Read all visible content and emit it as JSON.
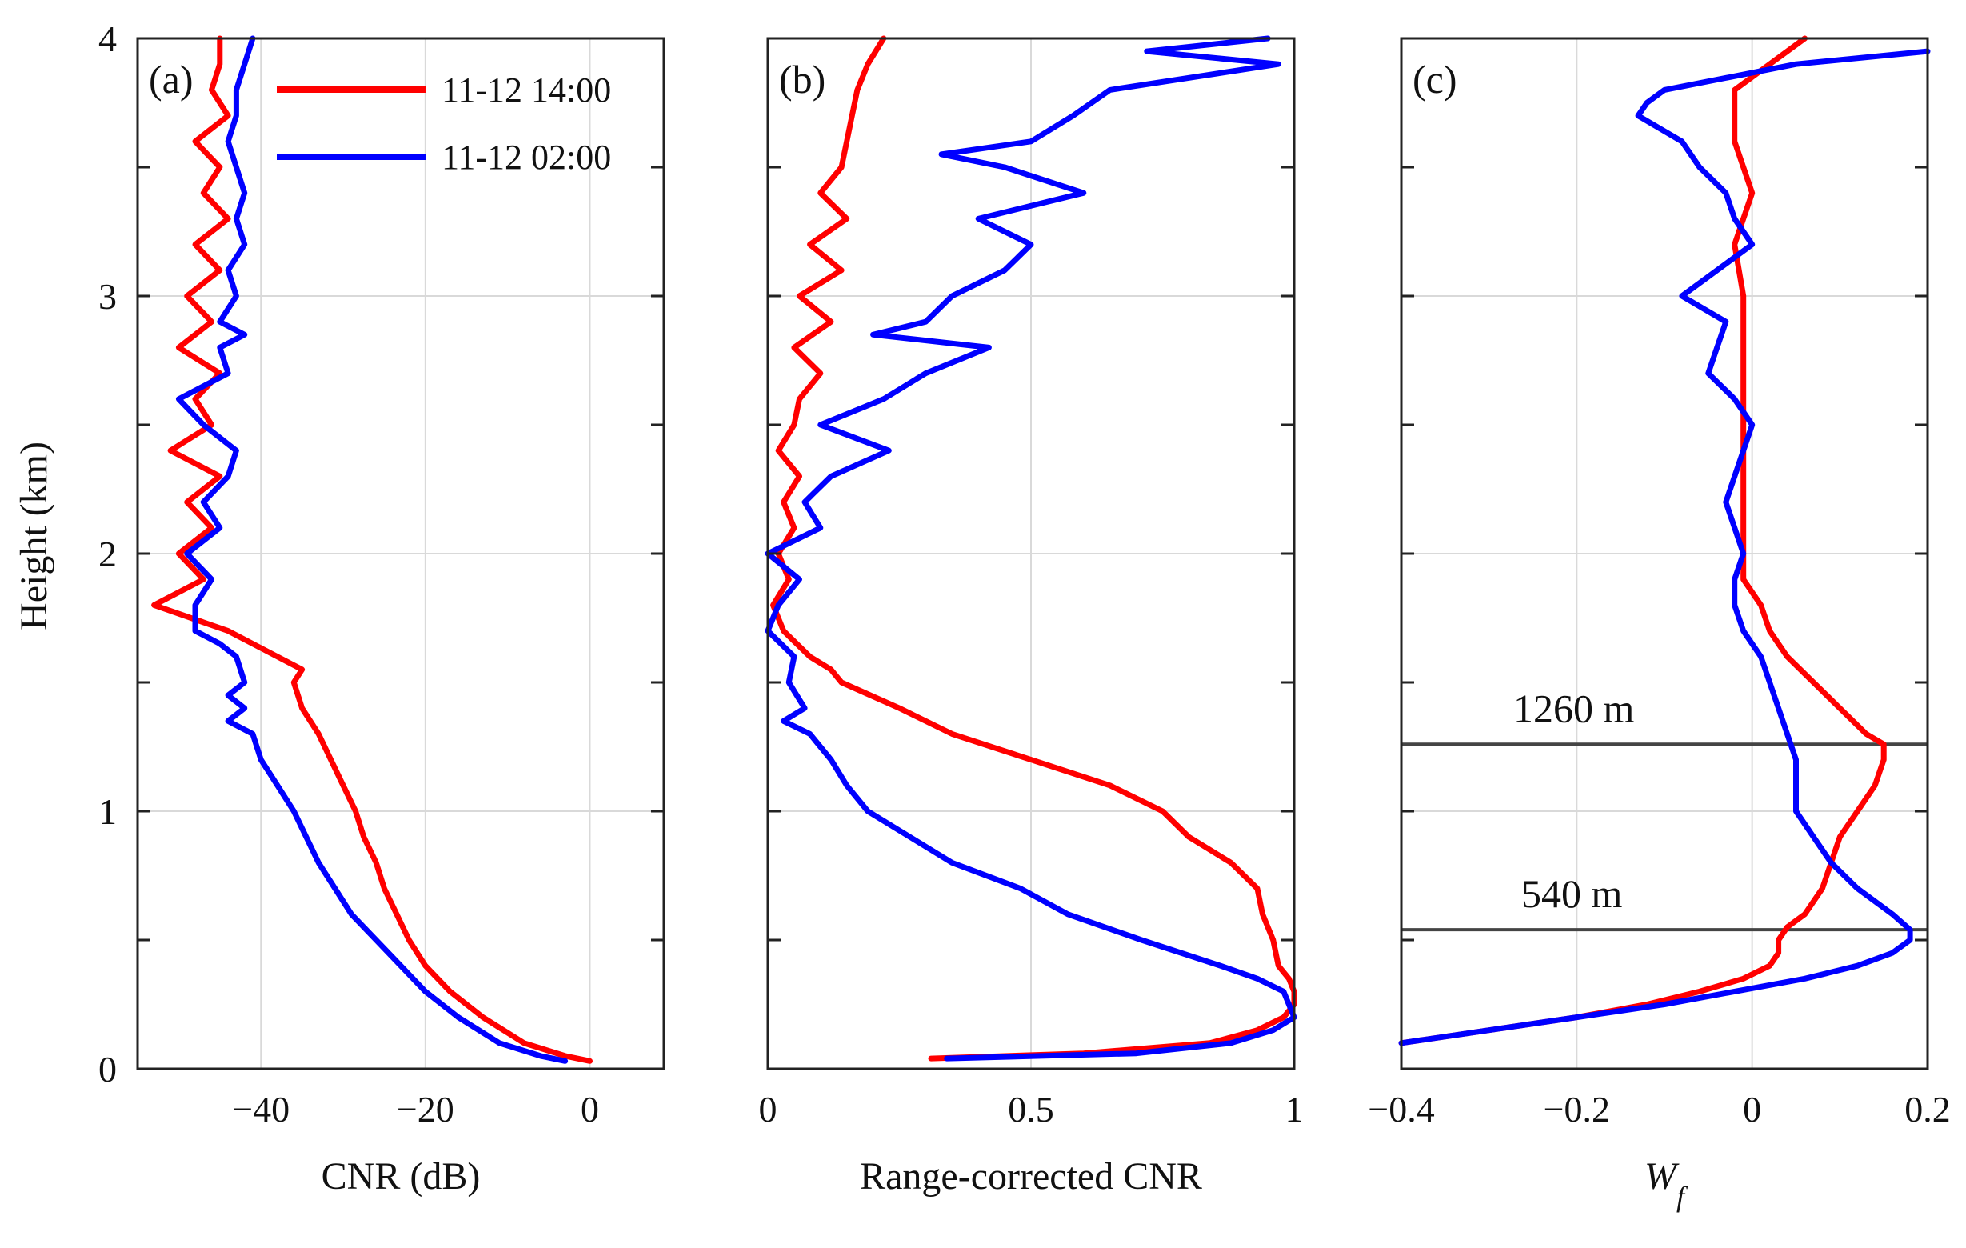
{
  "figure": {
    "ylabel": "Height (km)",
    "legend": [
      {
        "label": "11-12 14:00",
        "color": "#ff0000"
      },
      {
        "label": "11-12 02:00",
        "color": "#0000ff"
      }
    ]
  },
  "chart_data": [
    {
      "type": "line",
      "panel_label": "(a)",
      "xlabel": "CNR (dB)",
      "ylabel": "Height (km)",
      "xlim": [
        -55,
        9
      ],
      "ylim": [
        0,
        4
      ],
      "xticks": [
        -40,
        -20,
        0
      ],
      "xtick_labels": [
        "−40",
        "−20",
        "0"
      ],
      "yticks": [
        0,
        1,
        2,
        3,
        4
      ],
      "ytick_labels": [
        "0",
        "1",
        "2",
        "3",
        "4"
      ],
      "grid": true,
      "series": [
        {
          "name": "11-12 14:00",
          "color": "#ff0000",
          "y": [
            0.03,
            0.05,
            0.1,
            0.2,
            0.3,
            0.4,
            0.5,
            0.6,
            0.7,
            0.8,
            0.9,
            1.0,
            1.1,
            1.2,
            1.3,
            1.4,
            1.5,
            1.55,
            1.6,
            1.65,
            1.7,
            1.8,
            1.9,
            2.0,
            2.1,
            2.2,
            2.3,
            2.4,
            2.5,
            2.6,
            2.7,
            2.8,
            2.9,
            3.0,
            3.1,
            3.2,
            3.3,
            3.4,
            3.5,
            3.6,
            3.7,
            3.8,
            3.9,
            4.0
          ],
          "x": [
            0,
            -3,
            -8,
            -13,
            -17,
            -20,
            -22,
            -23.5,
            -25,
            -26,
            -27.5,
            -28.5,
            -30,
            -31.5,
            -33,
            -35,
            -36,
            -35,
            -38,
            -41,
            -44,
            -53,
            -47,
            -50,
            -46,
            -49,
            -45,
            -51,
            -46,
            -48,
            -45,
            -50,
            -46,
            -49,
            -45,
            -48,
            -44,
            -47,
            -45,
            -48,
            -44,
            -46,
            -45,
            -45
          ]
        },
        {
          "name": "11-12 02:00",
          "color": "#0000ff",
          "y": [
            0.03,
            0.05,
            0.1,
            0.2,
            0.3,
            0.4,
            0.5,
            0.6,
            0.7,
            0.8,
            0.9,
            1.0,
            1.1,
            1.2,
            1.3,
            1.35,
            1.4,
            1.45,
            1.5,
            1.6,
            1.65,
            1.7,
            1.8,
            1.9,
            2.0,
            2.1,
            2.2,
            2.3,
            2.4,
            2.5,
            2.6,
            2.7,
            2.8,
            2.85,
            2.9,
            3.0,
            3.1,
            3.2,
            3.3,
            3.4,
            3.5,
            3.6,
            3.7,
            3.8,
            3.9,
            4.0
          ],
          "x": [
            -3,
            -6,
            -11,
            -16,
            -20,
            -23,
            -26,
            -29,
            -31,
            -33,
            -34.5,
            -36,
            -38,
            -40,
            -41,
            -44,
            -42,
            -44,
            -42,
            -43,
            -45,
            -48,
            -48,
            -46,
            -49,
            -45,
            -47,
            -44,
            -43,
            -47,
            -50,
            -44,
            -45,
            -42,
            -45,
            -43,
            -44,
            -42,
            -43,
            -42,
            -43,
            -44,
            -43,
            -43,
            -42,
            -41
          ]
        }
      ]
    },
    {
      "type": "line",
      "panel_label": "(b)",
      "xlabel": "Range-corrected CNR",
      "xlim": [
        0,
        1
      ],
      "ylim": [
        0,
        4
      ],
      "xticks": [
        0,
        0.5,
        1
      ],
      "xtick_labels": [
        "0",
        "0.5",
        "1"
      ],
      "yticks": [
        0,
        1,
        2,
        3,
        4
      ],
      "grid": true,
      "series": [
        {
          "name": "11-12 14:00",
          "color": "#ff0000",
          "y": [
            0.04,
            0.06,
            0.1,
            0.15,
            0.2,
            0.25,
            0.3,
            0.35,
            0.4,
            0.5,
            0.6,
            0.7,
            0.8,
            0.9,
            1.0,
            1.1,
            1.2,
            1.3,
            1.4,
            1.5,
            1.55,
            1.6,
            1.7,
            1.8,
            1.9,
            2.0,
            2.1,
            2.2,
            2.3,
            2.4,
            2.5,
            2.6,
            2.7,
            2.8,
            2.9,
            3.0,
            3.1,
            3.2,
            3.3,
            3.4,
            3.5,
            3.6,
            3.7,
            3.8,
            3.9,
            4.0
          ],
          "x": [
            0.31,
            0.6,
            0.84,
            0.93,
            0.98,
            1.0,
            1.0,
            0.99,
            0.97,
            0.96,
            0.94,
            0.93,
            0.88,
            0.8,
            0.75,
            0.65,
            0.5,
            0.35,
            0.25,
            0.14,
            0.12,
            0.08,
            0.03,
            0.01,
            0.04,
            0.02,
            0.05,
            0.03,
            0.06,
            0.02,
            0.05,
            0.06,
            0.1,
            0.05,
            0.12,
            0.06,
            0.14,
            0.08,
            0.15,
            0.1,
            0.14,
            0.15,
            0.16,
            0.17,
            0.19,
            0.22
          ]
        },
        {
          "name": "11-12 02:00",
          "color": "#0000ff",
          "y": [
            0.04,
            0.06,
            0.1,
            0.15,
            0.2,
            0.25,
            0.3,
            0.35,
            0.4,
            0.5,
            0.6,
            0.7,
            0.8,
            0.9,
            1.0,
            1.1,
            1.2,
            1.3,
            1.35,
            1.4,
            1.5,
            1.6,
            1.7,
            1.8,
            1.9,
            2.0,
            2.1,
            2.2,
            2.3,
            2.4,
            2.5,
            2.6,
            2.7,
            2.8,
            2.85,
            2.9,
            3.0,
            3.1,
            3.2,
            3.3,
            3.4,
            3.5,
            3.55,
            3.6,
            3.7,
            3.8,
            3.9,
            3.95,
            4.0
          ],
          "x": [
            0.34,
            0.7,
            0.88,
            0.96,
            1.0,
            0.99,
            0.98,
            0.93,
            0.86,
            0.71,
            0.57,
            0.48,
            0.35,
            0.27,
            0.19,
            0.15,
            0.12,
            0.08,
            0.03,
            0.07,
            0.04,
            0.05,
            0.0,
            0.02,
            0.06,
            0.0,
            0.1,
            0.07,
            0.12,
            0.23,
            0.1,
            0.22,
            0.3,
            0.42,
            0.2,
            0.3,
            0.35,
            0.45,
            0.5,
            0.4,
            0.6,
            0.45,
            0.33,
            0.5,
            0.58,
            0.65,
            0.97,
            0.72,
            0.95
          ]
        }
      ]
    },
    {
      "type": "line",
      "panel_label": "(c)",
      "xlabel": "W",
      "xlabel_sub": "f",
      "xlim": [
        -0.4,
        0.2
      ],
      "ylim": [
        0,
        4
      ],
      "xticks": [
        -0.4,
        -0.2,
        0,
        0.2
      ],
      "xtick_labels": [
        "−0.4",
        "−0.2",
        "0",
        "0.2"
      ],
      "yticks": [
        0,
        1,
        2,
        3,
        4
      ],
      "grid": true,
      "hlines": [
        {
          "y": 1.26,
          "label": "1260 m"
        },
        {
          "y": 0.54,
          "label": "540 m"
        }
      ],
      "series": [
        {
          "name": "11-12 14:00",
          "color": "#ff0000",
          "y": [
            0.1,
            0.15,
            0.2,
            0.25,
            0.3,
            0.35,
            0.4,
            0.45,
            0.5,
            0.55,
            0.6,
            0.7,
            0.8,
            0.9,
            1.0,
            1.1,
            1.2,
            1.26,
            1.3,
            1.4,
            1.5,
            1.6,
            1.7,
            1.8,
            1.9,
            2.0,
            2.2,
            2.4,
            2.6,
            2.8,
            3.0,
            3.2,
            3.4,
            3.6,
            3.8,
            3.9,
            4.0
          ],
          "x": [
            -0.4,
            -0.3,
            -0.2,
            -0.12,
            -0.06,
            -0.01,
            0.02,
            0.03,
            0.03,
            0.04,
            0.06,
            0.08,
            0.09,
            0.1,
            0.12,
            0.14,
            0.15,
            0.15,
            0.13,
            0.1,
            0.07,
            0.04,
            0.02,
            0.01,
            -0.01,
            -0.01,
            -0.01,
            -0.01,
            -0.01,
            -0.01,
            -0.01,
            -0.02,
            0.0,
            -0.02,
            -0.02,
            0.02,
            0.06
          ]
        },
        {
          "name": "11-12 02:00",
          "color": "#0000ff",
          "y": [
            0.1,
            0.15,
            0.2,
            0.25,
            0.3,
            0.35,
            0.4,
            0.45,
            0.5,
            0.54,
            0.6,
            0.7,
            0.8,
            0.9,
            1.0,
            1.1,
            1.2,
            1.3,
            1.4,
            1.5,
            1.6,
            1.7,
            1.8,
            1.9,
            2.0,
            2.2,
            2.4,
            2.5,
            2.6,
            2.7,
            2.8,
            2.9,
            3.0,
            3.2,
            3.3,
            3.4,
            3.5,
            3.6,
            3.7,
            3.75,
            3.8,
            3.9,
            3.95
          ],
          "x": [
            -0.4,
            -0.3,
            -0.2,
            -0.1,
            -0.02,
            0.06,
            0.12,
            0.16,
            0.18,
            0.18,
            0.16,
            0.12,
            0.09,
            0.07,
            0.05,
            0.05,
            0.05,
            0.04,
            0.03,
            0.02,
            0.01,
            -0.01,
            -0.02,
            -0.02,
            -0.01,
            -0.03,
            -0.01,
            0.0,
            -0.02,
            -0.05,
            -0.04,
            -0.03,
            -0.08,
            0.0,
            -0.02,
            -0.03,
            -0.06,
            -0.08,
            -0.13,
            -0.12,
            -0.1,
            0.05,
            0.2
          ]
        }
      ]
    }
  ]
}
